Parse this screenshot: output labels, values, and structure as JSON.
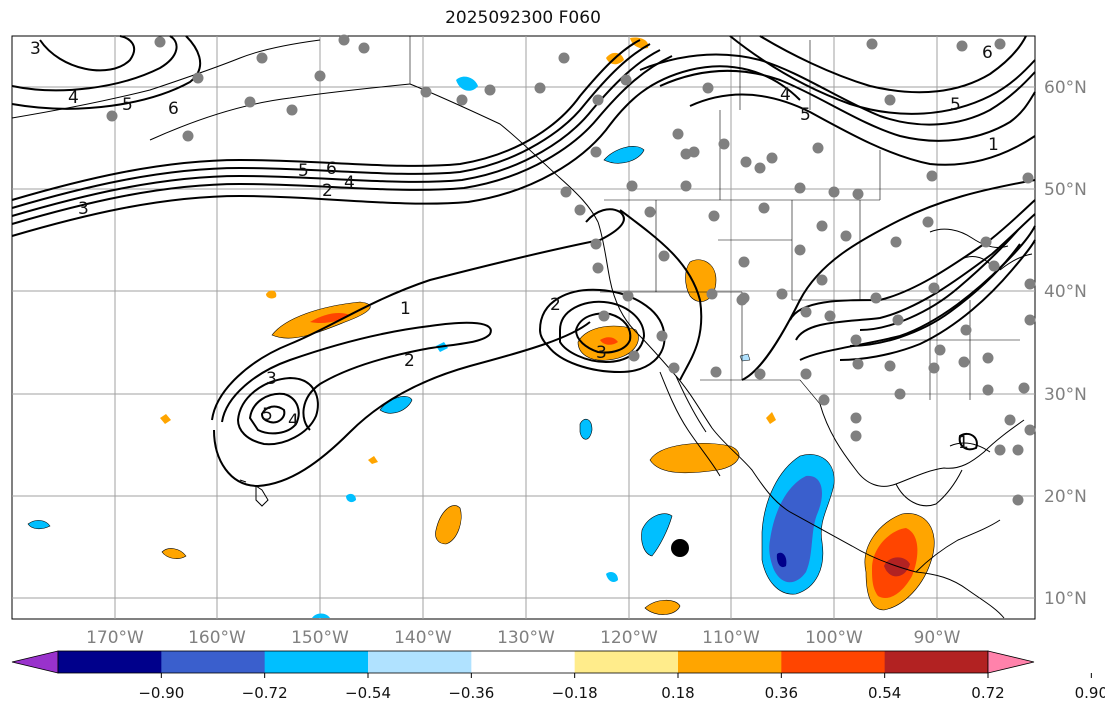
{
  "title": "2025092300 F060",
  "map": {
    "lon_labels": [
      "170°W",
      "160°W",
      "150°W",
      "140°W",
      "130°W",
      "120°W",
      "110°W",
      "100°W",
      "90°W"
    ],
    "lat_labels": [
      "60°N",
      "50°N",
      "40°N",
      "30°N",
      "20°N",
      "10°N"
    ],
    "contour_labels": [
      {
        "text": "3",
        "id": "alaska-3"
      },
      {
        "text": "4",
        "id": "alaska-4"
      },
      {
        "text": "5",
        "id": "alaska-5"
      },
      {
        "text": "6",
        "id": "alaska-6"
      },
      {
        "text": "3",
        "id": "pac-3"
      },
      {
        "text": "2",
        "id": "pac-2"
      },
      {
        "text": "5",
        "id": "pac-5"
      },
      {
        "text": "6",
        "id": "pac-6"
      },
      {
        "text": "4",
        "id": "pac-4"
      },
      {
        "text": "1",
        "id": "low-1"
      },
      {
        "text": "2",
        "id": "low-2"
      },
      {
        "text": "3",
        "id": "low-3"
      },
      {
        "text": "5",
        "id": "low-5"
      },
      {
        "text": "4",
        "id": "low-4"
      },
      {
        "text": "2",
        "id": "cal-2"
      },
      {
        "text": "3",
        "id": "cal-3"
      },
      {
        "text": "4",
        "id": "ne-4"
      },
      {
        "text": "5",
        "id": "ne-5"
      },
      {
        "text": "6",
        "id": "ne-6"
      },
      {
        "text": "5",
        "id": "ne-5b"
      },
      {
        "text": "1",
        "id": "ne-1"
      },
      {
        "text": "1",
        "id": "gulf-1"
      }
    ]
  },
  "colorbar": {
    "ticks": [
      "−0.90",
      "−0.72",
      "−0.54",
      "−0.36",
      "−0.18",
      "0.18",
      "0.36",
      "0.54",
      "0.72",
      "0.90"
    ],
    "colors": [
      "#9932cc",
      "#00008b",
      "#3a5fcd",
      "#00bfff",
      "#b0e2ff",
      "#ffffff",
      "#ffec8b",
      "#ffa500",
      "#ff4500",
      "#b22222",
      "#ff82ab"
    ]
  },
  "colors": {
    "land_line": "#000000",
    "grid": "#a0a0a0",
    "station": "#808080"
  }
}
